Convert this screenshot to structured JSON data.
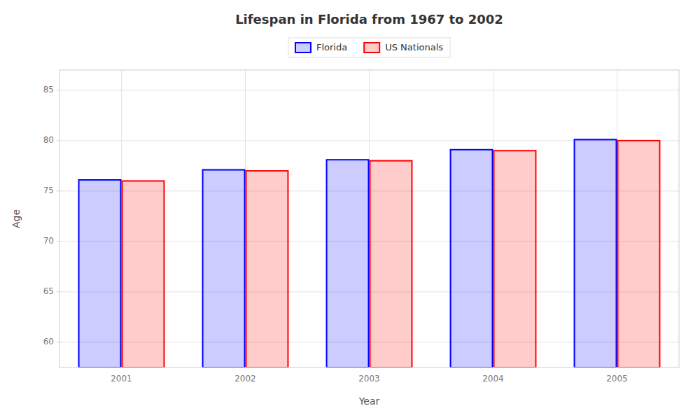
{
  "chart_data": {
    "type": "bar",
    "title": "Lifespan in Florida from 1967 to 2002",
    "xlabel": "Year",
    "ylabel": "Age",
    "categories": [
      "2001",
      "2002",
      "2003",
      "2004",
      "2005"
    ],
    "series": [
      {
        "name": "Florida",
        "color": "#0000ff",
        "values": [
          76.1,
          77.1,
          78.1,
          79.1,
          80.1
        ]
      },
      {
        "name": "US Nationals",
        "color": "#ff0000",
        "values": [
          76.0,
          77.0,
          78.0,
          79.0,
          80.0
        ]
      }
    ],
    "ylim": [
      57.5,
      87
    ],
    "yticks": [
      60,
      65,
      70,
      75,
      80,
      85
    ],
    "grid": true,
    "legend": "top"
  }
}
